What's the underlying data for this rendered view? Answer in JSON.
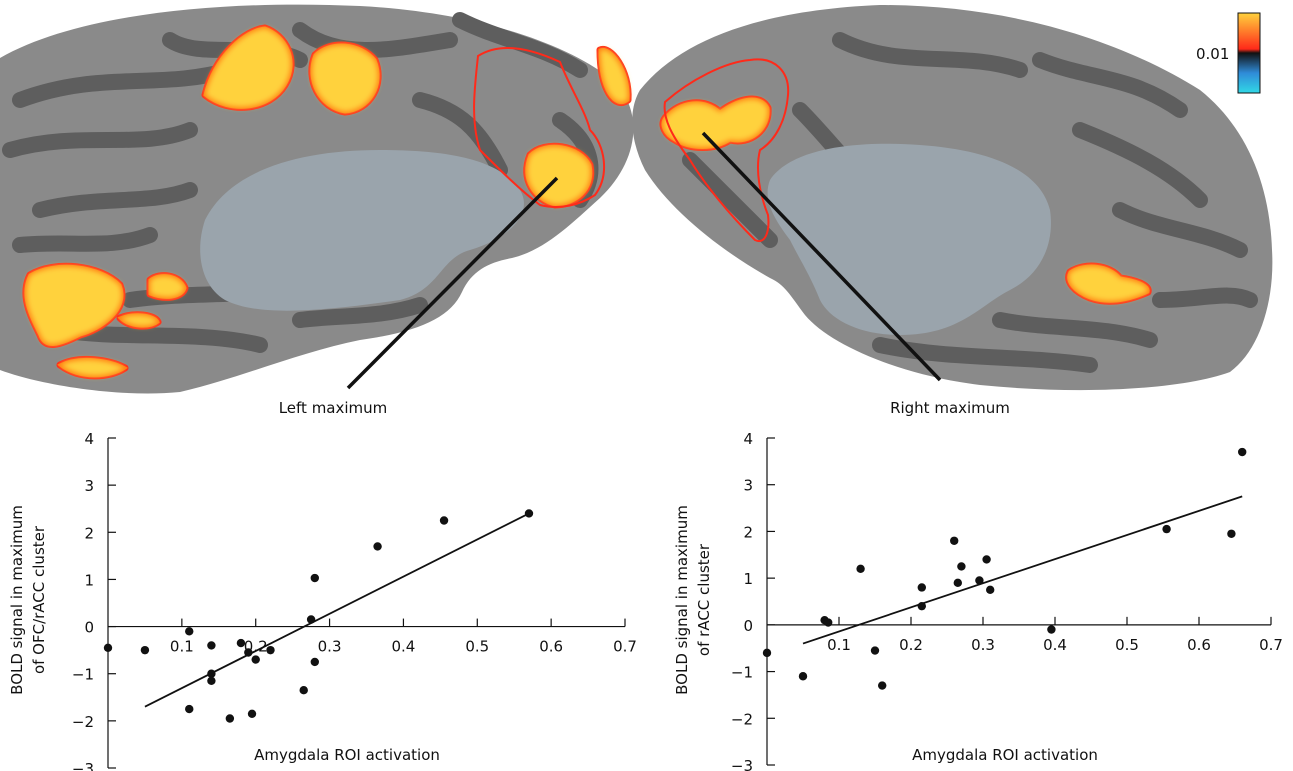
{
  "figure": {
    "left_label": "Left maximum",
    "right_label": "Right maximum",
    "colorbar_label": "0.01",
    "colors": {
      "cortex_light": "#8a8a8a",
      "cortex_dark": "#5e5e5e",
      "wall": "#9aa4ac",
      "hot": "#ffd23c",
      "warm": "#ff7a10",
      "roi": "#ff2a1a",
      "cold": "#2f8bd8"
    }
  },
  "chart_data": [
    {
      "type": "scatter",
      "xlabel": "Amygdala ROI activation",
      "ylabel_lines": [
        "BOLD signal in maximum",
        "of  OFC/rACC cluster"
      ],
      "xlim": [
        0,
        0.7
      ],
      "ylim": [
        -3,
        4
      ],
      "xticks": [
        "0.1",
        "0.2",
        "0.3",
        "0.4",
        "0.5",
        "0.6",
        "0.7"
      ],
      "yticks": [
        "4",
        "3",
        "2",
        "1",
        "0",
        "−1",
        "−2",
        "−3"
      ],
      "points": [
        [
          0.0,
          -0.45
        ],
        [
          0.05,
          -0.5
        ],
        [
          0.11,
          -0.1
        ],
        [
          0.14,
          -0.4
        ],
        [
          0.14,
          -1.0
        ],
        [
          0.14,
          -1.15
        ],
        [
          0.18,
          -0.35
        ],
        [
          0.19,
          -0.55
        ],
        [
          0.2,
          -0.7
        ],
        [
          0.22,
          -0.5
        ],
        [
          0.11,
          -1.75
        ],
        [
          0.165,
          -1.95
        ],
        [
          0.195,
          -1.85
        ],
        [
          0.265,
          -1.35
        ],
        [
          0.275,
          0.15
        ],
        [
          0.28,
          -0.75
        ],
        [
          0.28,
          1.03
        ],
        [
          0.365,
          1.7
        ],
        [
          0.455,
          2.25
        ],
        [
          0.57,
          2.4
        ]
      ],
      "fit": [
        [
          0.05,
          -1.7
        ],
        [
          0.57,
          2.4
        ]
      ]
    },
    {
      "type": "scatter",
      "xlabel": "Amygdala ROI activation",
      "ylabel_lines": [
        "BOLD signal in maximum",
        "of  rACC cluster"
      ],
      "xlim": [
        0,
        0.7
      ],
      "ylim": [
        -3,
        4
      ],
      "xticks": [
        "0.1",
        "0.2",
        "0.3",
        "0.4",
        "0.5",
        "0.6",
        "0.7"
      ],
      "yticks": [
        "4",
        "3",
        "2",
        "1",
        "0",
        "−1",
        "−2",
        "−3"
      ],
      "points": [
        [
          0.0,
          -0.6
        ],
        [
          0.05,
          -1.1
        ],
        [
          0.08,
          0.1
        ],
        [
          0.085,
          0.05
        ],
        [
          0.13,
          1.2
        ],
        [
          0.15,
          -0.55
        ],
        [
          0.16,
          -1.3
        ],
        [
          0.215,
          0.4
        ],
        [
          0.215,
          0.8
        ],
        [
          0.26,
          1.8
        ],
        [
          0.265,
          0.9
        ],
        [
          0.27,
          1.25
        ],
        [
          0.295,
          0.95
        ],
        [
          0.305,
          1.4
        ],
        [
          0.31,
          0.75
        ],
        [
          0.395,
          -0.1
        ],
        [
          0.555,
          2.05
        ],
        [
          0.645,
          1.95
        ],
        [
          0.66,
          3.7
        ]
      ],
      "fit": [
        [
          0.05,
          -0.4
        ],
        [
          0.66,
          2.75
        ]
      ]
    }
  ]
}
